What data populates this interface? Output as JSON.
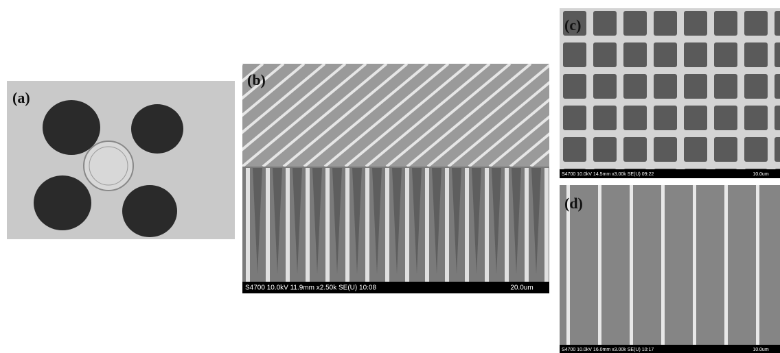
{
  "panels": [
    {
      "label": "(a)"
    },
    {
      "label": "(b)",
      "info": "S4700 10.0kV 11.9mm x2.50k SE(U) 10:08",
      "scale": "20.0um"
    },
    {
      "label": "(c)",
      "info": "S4700 10.0kV 14.5mm x3.00k SE(U) 09:22",
      "scale": "10.0um"
    },
    {
      "label": "(d)",
      "info": "S4700 10.0kV 16.0mm x3.00k SE(U) 10:17",
      "scale": "10.0um"
    }
  ]
}
